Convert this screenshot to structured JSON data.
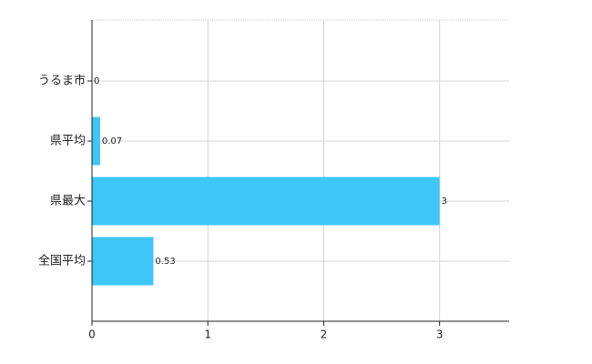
{
  "chart_data": {
    "type": "bar",
    "orientation": "horizontal",
    "categories": [
      "うるま市",
      "県平均",
      "県最大",
      "全国平均"
    ],
    "values": [
      0,
      0.07,
      3,
      0.53
    ],
    "color": "#3ec6f7",
    "xlim": [
      0,
      3.6
    ],
    "xticks": [
      0,
      1,
      2,
      3
    ],
    "grid": true
  }
}
